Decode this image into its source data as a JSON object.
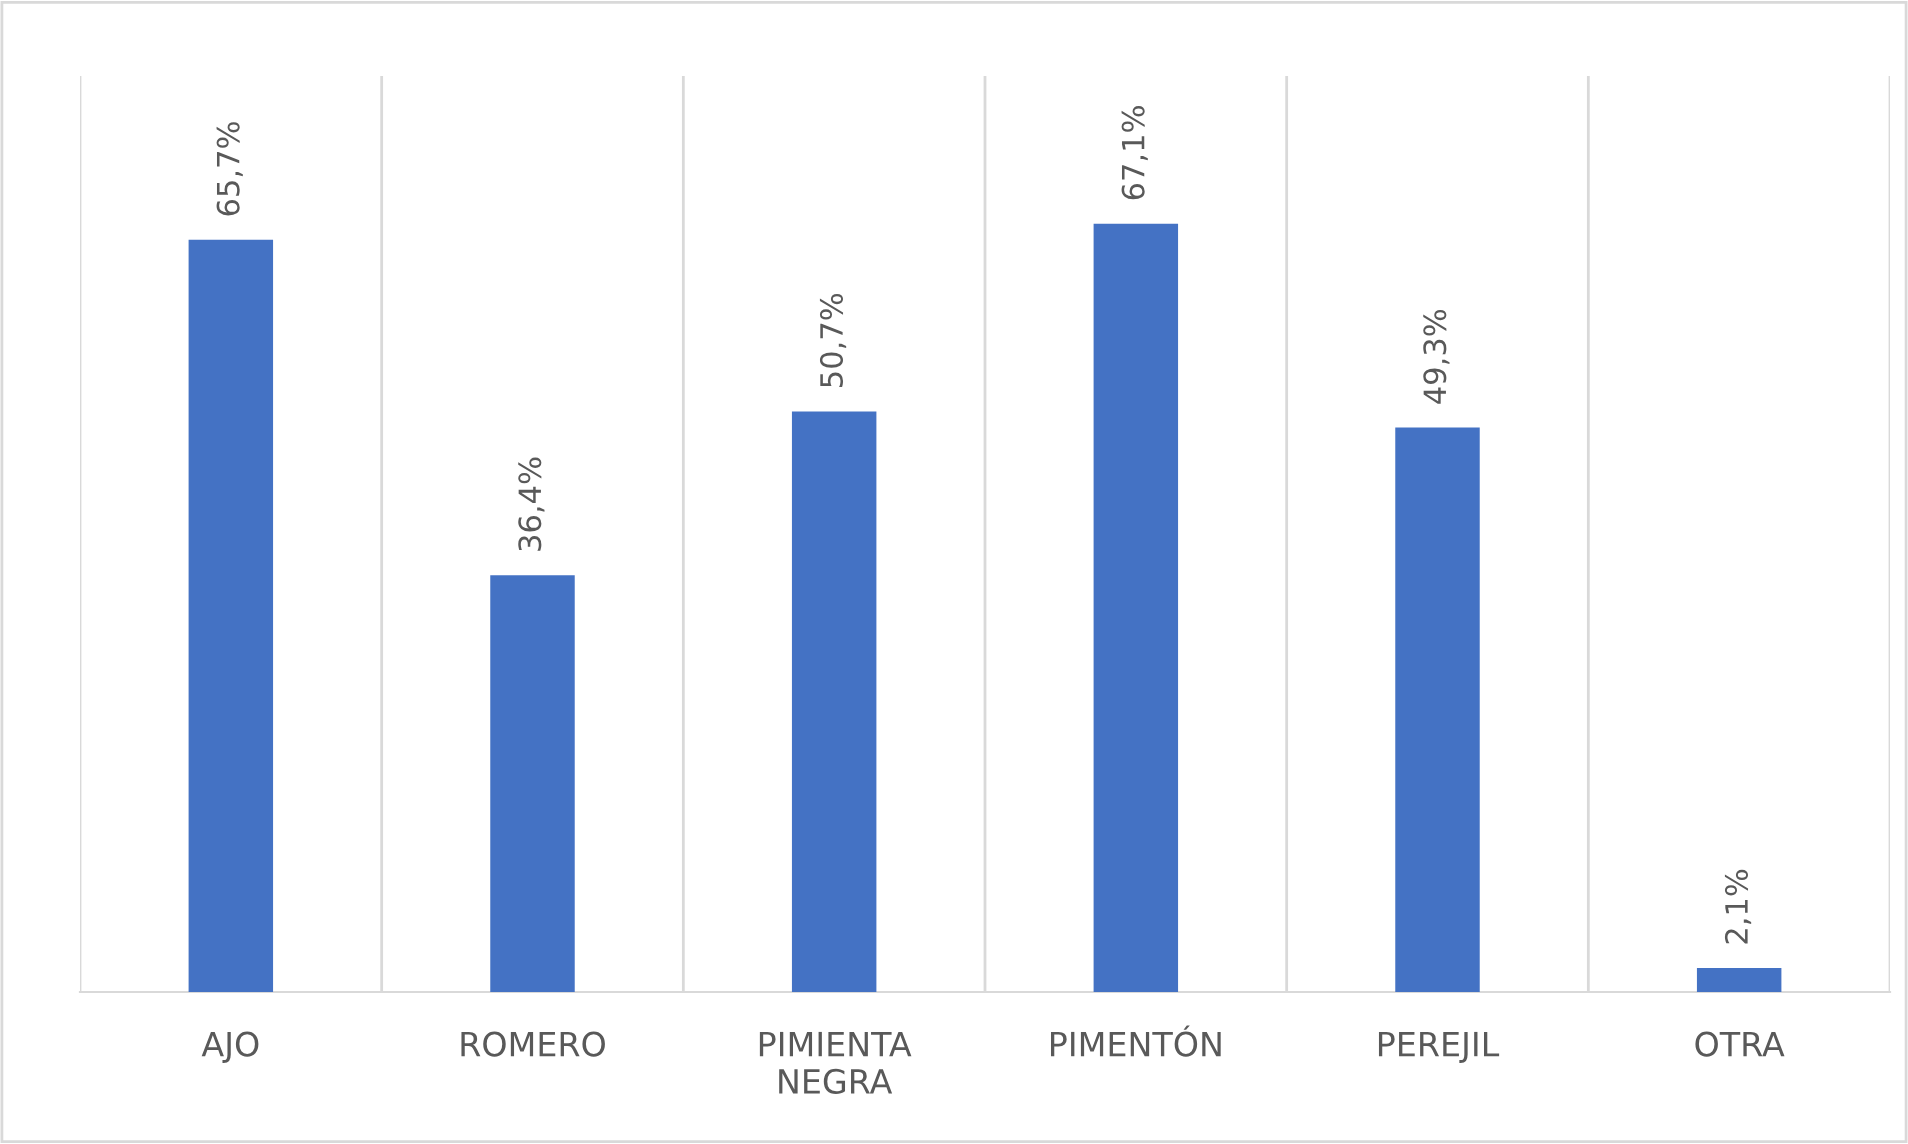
{
  "chart_data": {
    "type": "bar",
    "categories": [
      "AJO",
      "ROMERO",
      "PIMIENTA NEGRA",
      "PIMENTÓN",
      "PEREJIL",
      "OTRA"
    ],
    "values": [
      65.7,
      36.4,
      50.7,
      67.1,
      49.3,
      2.1
    ],
    "value_labels": [
      "65,7%",
      "36,4%",
      "50,7%",
      "67,1%",
      "49,3%",
      "2,1%"
    ],
    "color": "#4472c4",
    "ylim": [
      0,
      80
    ],
    "grid": "x",
    "tick_labels": "x"
  }
}
